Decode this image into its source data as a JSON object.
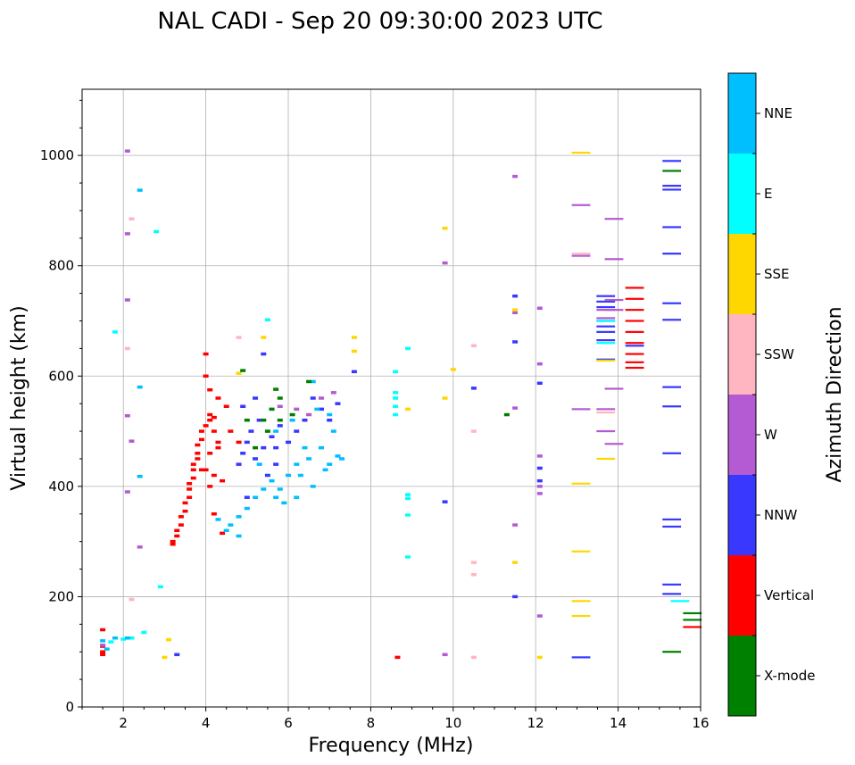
{
  "chart_data": {
    "type": "scatter",
    "title": "NAL CADI - Sep 20 09:30:00 2023 UTC",
    "xlabel": "Frequency (MHz)",
    "ylabel": "Virtual height (km)",
    "xlim": [
      1,
      16
    ],
    "ylim": [
      0,
      1120
    ],
    "xticks": [
      2,
      4,
      6,
      8,
      10,
      12,
      14,
      16
    ],
    "yticks": [
      0,
      200,
      400,
      600,
      800,
      1000
    ],
    "grid": true,
    "colorbar": {
      "title": "Azimuth Direction",
      "categories": [
        "X-mode",
        "Vertical",
        "NNW",
        "W",
        "SSW",
        "SSE",
        "E",
        "NNE"
      ],
      "colors": [
        "#008000",
        "#ff0000",
        "#3838ff",
        "#b45ad2",
        "#ffb6c1",
        "#ffd700",
        "#00ffff",
        "#00bfff"
      ]
    },
    "series": [
      {
        "name": "Vertical",
        "color": "#ff0000",
        "points": [
          [
            1.5,
            140
          ],
          [
            1.5,
            110
          ],
          [
            1.5,
            100
          ],
          [
            1.5,
            95
          ],
          [
            3.2,
            295
          ],
          [
            3.2,
            300
          ],
          [
            3.3,
            310
          ],
          [
            3.3,
            320
          ],
          [
            3.4,
            330
          ],
          [
            3.4,
            345
          ],
          [
            3.5,
            355
          ],
          [
            3.5,
            370
          ],
          [
            3.6,
            380
          ],
          [
            3.6,
            395
          ],
          [
            3.6,
            405
          ],
          [
            3.7,
            415
          ],
          [
            3.7,
            430
          ],
          [
            3.7,
            440
          ],
          [
            3.8,
            450
          ],
          [
            3.8,
            460
          ],
          [
            3.8,
            475
          ],
          [
            3.9,
            485
          ],
          [
            3.9,
            500
          ],
          [
            4.0,
            510
          ],
          [
            4.1,
            520
          ],
          [
            4.1,
            530
          ],
          [
            4.2,
            525
          ],
          [
            4.2,
            500
          ],
          [
            4.3,
            480
          ],
          [
            4.3,
            470
          ],
          [
            4.1,
            460
          ],
          [
            4.0,
            430
          ],
          [
            4.2,
            420
          ],
          [
            4.4,
            410
          ],
          [
            4.0,
            640
          ],
          [
            4.0,
            600
          ],
          [
            4.1,
            575
          ],
          [
            4.3,
            560
          ],
          [
            4.5,
            545
          ],
          [
            4.2,
            350
          ],
          [
            4.4,
            315
          ],
          [
            4.6,
            500
          ],
          [
            4.8,
            480
          ],
          [
            4.1,
            400
          ],
          [
            3.9,
            430
          ],
          [
            8.65,
            90
          ],
          [
            14.4,
            760
          ],
          [
            14.4,
            740
          ],
          [
            14.4,
            720
          ],
          [
            14.4,
            700
          ],
          [
            14.4,
            680
          ],
          [
            14.4,
            660
          ],
          [
            14.4,
            640
          ],
          [
            14.4,
            625
          ],
          [
            14.4,
            615
          ],
          [
            15.8,
            145
          ]
        ]
      },
      {
        "name": "NNW",
        "color": "#3838ff",
        "points": [
          [
            3.3,
            95
          ],
          [
            4.8,
            440
          ],
          [
            4.9,
            460
          ],
          [
            5.0,
            480
          ],
          [
            5.2,
            450
          ],
          [
            5.4,
            470
          ],
          [
            5.6,
            490
          ],
          [
            5.8,
            510
          ],
          [
            6.0,
            480
          ],
          [
            6.2,
            500
          ],
          [
            6.4,
            520
          ],
          [
            6.6,
            560
          ],
          [
            6.8,
            540
          ],
          [
            7.0,
            520
          ],
          [
            7.2,
            550
          ],
          [
            5.5,
            420
          ],
          [
            5.7,
            440
          ],
          [
            4.9,
            545
          ],
          [
            5.2,
            560
          ],
          [
            5.0,
            380
          ],
          [
            5.4,
            640
          ],
          [
            5.1,
            500
          ],
          [
            5.3,
            520
          ],
          [
            5.7,
            470
          ],
          [
            7.6,
            608
          ],
          [
            9.8,
            372
          ],
          [
            10.5,
            578
          ],
          [
            11.5,
            745
          ],
          [
            11.5,
            662
          ],
          [
            11.5,
            200
          ],
          [
            12.1,
            587
          ],
          [
            12.1,
            433
          ],
          [
            12.1,
            410
          ],
          [
            13.1,
            90
          ],
          [
            13.7,
            745
          ],
          [
            13.7,
            735
          ],
          [
            13.7,
            725
          ],
          [
            13.7,
            700
          ],
          [
            13.7,
            690
          ],
          [
            13.7,
            680
          ],
          [
            13.7,
            665
          ],
          [
            13.7,
            630
          ],
          [
            14.4,
            655
          ],
          [
            15.3,
            990
          ],
          [
            15.3,
            945
          ],
          [
            15.3,
            938
          ],
          [
            15.3,
            870
          ],
          [
            15.3,
            822
          ],
          [
            15.3,
            732
          ],
          [
            15.3,
            702
          ],
          [
            15.3,
            580
          ],
          [
            15.3,
            545
          ],
          [
            15.3,
            460
          ],
          [
            15.3,
            340
          ],
          [
            15.3,
            327
          ],
          [
            15.3,
            222
          ],
          [
            15.3,
            205
          ]
        ]
      },
      {
        "name": "W",
        "color": "#b45ad2",
        "points": [
          [
            1.5,
            112
          ],
          [
            2.1,
            1008
          ],
          [
            2.1,
            858
          ],
          [
            2.1,
            738
          ],
          [
            2.1,
            528
          ],
          [
            2.2,
            482
          ],
          [
            2.1,
            390
          ],
          [
            2.4,
            290
          ],
          [
            6.2,
            540
          ],
          [
            6.5,
            530
          ],
          [
            6.8,
            560
          ],
          [
            7.1,
            570
          ],
          [
            5.8,
            545
          ],
          [
            9.8,
            95
          ],
          [
            9.8,
            805
          ],
          [
            11.5,
            962
          ],
          [
            11.5,
            715
          ],
          [
            11.5,
            542
          ],
          [
            11.5,
            330
          ],
          [
            12.1,
            723
          ],
          [
            12.1,
            622
          ],
          [
            12.1,
            455
          ],
          [
            12.1,
            400
          ],
          [
            12.1,
            387
          ],
          [
            12.1,
            165
          ],
          [
            13.1,
            910
          ],
          [
            13.1,
            818
          ],
          [
            13.1,
            540
          ],
          [
            13.7,
            720
          ],
          [
            13.7,
            705
          ],
          [
            13.7,
            540
          ],
          [
            13.7,
            500
          ],
          [
            13.9,
            885
          ],
          [
            13.9,
            812
          ],
          [
            13.9,
            738
          ],
          [
            13.9,
            720
          ],
          [
            13.9,
            577
          ],
          [
            13.9,
            477
          ]
        ]
      },
      {
        "name": "SSW",
        "color": "#ffb6c1",
        "points": [
          [
            2.2,
            885
          ],
          [
            2.1,
            650
          ],
          [
            2.2,
            195
          ],
          [
            4.8,
            670
          ],
          [
            10.5,
            655
          ],
          [
            10.5,
            500
          ],
          [
            10.5,
            262
          ],
          [
            10.5,
            240
          ],
          [
            10.5,
            90
          ],
          [
            13.1,
            822
          ],
          [
            13.7,
            534
          ]
        ]
      },
      {
        "name": "SSE",
        "color": "#ffd700",
        "points": [
          [
            3.1,
            122
          ],
          [
            3.0,
            90
          ],
          [
            4.8,
            605
          ],
          [
            5.4,
            670
          ],
          [
            7.6,
            670
          ],
          [
            7.6,
            645
          ],
          [
            8.6,
            545
          ],
          [
            8.9,
            540
          ],
          [
            9.8,
            868
          ],
          [
            9.8,
            560
          ],
          [
            10.0,
            612
          ],
          [
            11.5,
            720
          ],
          [
            11.5,
            262
          ],
          [
            12.1,
            90
          ],
          [
            13.1,
            1005
          ],
          [
            13.1,
            405
          ],
          [
            13.1,
            282
          ],
          [
            13.1,
            192
          ],
          [
            13.1,
            165
          ],
          [
            13.7,
            628
          ],
          [
            13.7,
            450
          ]
        ]
      },
      {
        "name": "E",
        "color": "#00ffff",
        "points": [
          [
            1.7,
            118
          ],
          [
            2.0,
            123
          ],
          [
            2.2,
            125
          ],
          [
            2.5,
            135
          ],
          [
            1.8,
            680
          ],
          [
            2.8,
            862
          ],
          [
            2.9,
            218
          ],
          [
            5.5,
            702
          ],
          [
            8.6,
            608
          ],
          [
            8.6,
            570
          ],
          [
            8.6,
            560
          ],
          [
            8.6,
            545
          ],
          [
            8.6,
            530
          ],
          [
            8.9,
            650
          ],
          [
            8.9,
            385
          ],
          [
            8.9,
            378
          ],
          [
            8.9,
            348
          ],
          [
            8.9,
            272
          ],
          [
            13.7,
            700
          ],
          [
            13.7,
            660
          ],
          [
            15.5,
            192
          ]
        ]
      },
      {
        "name": "NNE",
        "color": "#00bfff",
        "points": [
          [
            1.5,
            120
          ],
          [
            1.6,
            105
          ],
          [
            1.8,
            125
          ],
          [
            2.1,
            125
          ],
          [
            2.4,
            937
          ],
          [
            2.4,
            580
          ],
          [
            2.4,
            418
          ],
          [
            4.3,
            340
          ],
          [
            4.6,
            330
          ],
          [
            4.8,
            345
          ],
          [
            5.0,
            360
          ],
          [
            5.2,
            380
          ],
          [
            5.4,
            395
          ],
          [
            5.6,
            410
          ],
          [
            5.8,
            395
          ],
          [
            6.0,
            420
          ],
          [
            6.2,
            440
          ],
          [
            6.5,
            450
          ],
          [
            6.8,
            470
          ],
          [
            7.0,
            440
          ],
          [
            7.2,
            455
          ],
          [
            5.9,
            370
          ],
          [
            6.3,
            420
          ],
          [
            6.6,
            400
          ],
          [
            6.9,
            430
          ],
          [
            5.7,
            500
          ],
          [
            6.1,
            520
          ],
          [
            6.4,
            470
          ],
          [
            6.7,
            540
          ],
          [
            7.1,
            500
          ],
          [
            4.5,
            320
          ],
          [
            4.8,
            310
          ],
          [
            5.3,
            440
          ],
          [
            5.7,
            380
          ],
          [
            6.2,
            380
          ],
          [
            7.3,
            450
          ],
          [
            6.6,
            590
          ],
          [
            7.0,
            530
          ]
        ]
      },
      {
        "name": "X-mode",
        "color": "#008000",
        "points": [
          [
            5.2,
            470
          ],
          [
            5.5,
            500
          ],
          [
            5.8,
            560
          ],
          [
            6.1,
            530
          ],
          [
            5.4,
            520
          ],
          [
            5.0,
            520
          ],
          [
            5.8,
            520
          ],
          [
            6.5,
            590
          ],
          [
            5.6,
            540
          ],
          [
            4.9,
            610
          ],
          [
            5.7,
            576
          ],
          [
            11.3,
            530
          ],
          [
            15.3,
            972
          ],
          [
            15.3,
            100
          ],
          [
            15.8,
            170
          ],
          [
            15.8,
            158
          ]
        ]
      }
    ]
  }
}
